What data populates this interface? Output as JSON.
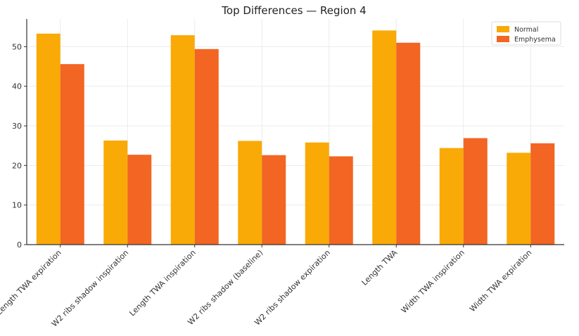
{
  "chart_data": {
    "type": "bar",
    "title": "Top Differences — Region 4",
    "xlabel": "",
    "ylabel": "",
    "ylim": [
      0,
      57
    ],
    "yticks": [
      0,
      10,
      20,
      30,
      40,
      50
    ],
    "grid": true,
    "legend_position": "top-right",
    "categories": [
      "Length TWA expiration",
      "W2 ribs shadow inspiration",
      "Length TWA inspiration",
      "W2 ribs shadow (baseline)",
      "W2 ribs shadow expiration",
      "Length TWA",
      "Width TWA inspiration",
      "Width TWA expiration"
    ],
    "series": [
      {
        "name": "Normal",
        "color": "#f9aa06",
        "values": [
          53.3,
          26.3,
          52.9,
          26.2,
          25.8,
          54.1,
          24.4,
          23.2
        ]
      },
      {
        "name": "Emphysema",
        "color": "#f26522",
        "values": [
          45.6,
          22.7,
          49.4,
          22.6,
          22.3,
          51.0,
          26.9,
          25.6
        ]
      }
    ]
  }
}
